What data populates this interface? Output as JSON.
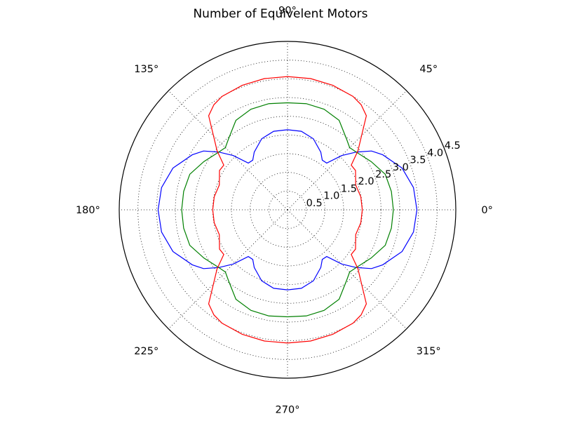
{
  "chart_data": {
    "type": "line",
    "projection": "polar",
    "title": "Number of Equivelent Motors",
    "rlim": [
      0,
      4.5
    ],
    "grid": true,
    "angle_ticks": [
      {
        "deg": 0,
        "label": "0°"
      },
      {
        "deg": 45,
        "label": "45°"
      },
      {
        "deg": 90,
        "label": "90°"
      },
      {
        "deg": 135,
        "label": "135°"
      },
      {
        "deg": 180,
        "label": "180°"
      },
      {
        "deg": 225,
        "label": "225°"
      },
      {
        "deg": 270,
        "label": "270°"
      },
      {
        "deg": 315,
        "label": "315°"
      }
    ],
    "radial_ticks": [
      {
        "r": 0.5,
        "label": "0.5"
      },
      {
        "r": 1.0,
        "label": "1.0"
      },
      {
        "r": 1.5,
        "label": "1.5"
      },
      {
        "r": 2.0,
        "label": "2.0"
      },
      {
        "r": 2.5,
        "label": "2.5"
      },
      {
        "r": 3.0,
        "label": "3.0"
      },
      {
        "r": 3.5,
        "label": "3.5"
      },
      {
        "r": 4.0,
        "label": "4.0"
      },
      {
        "r": 4.5,
        "label": "4.5"
      }
    ],
    "series": [
      {
        "color": "#0000ff",
        "theta_deg": [
          0,
          10,
          20,
          30,
          35,
          40,
          45,
          50,
          55,
          60,
          70,
          80,
          90
        ],
        "r": [
          3.46,
          3.42,
          3.26,
          2.94,
          2.74,
          2.4,
          2.05,
          1.63,
          1.62,
          1.78,
          2.02,
          2.13,
          2.14
        ]
      },
      {
        "color": "#008000",
        "theta_deg": [
          0,
          10,
          20,
          30,
          40,
          45,
          50,
          60,
          70,
          80,
          90
        ],
        "r": [
          2.83,
          2.82,
          2.78,
          2.58,
          2.4,
          2.35,
          2.46,
          2.76,
          2.86,
          2.88,
          2.86
        ]
      },
      {
        "color": "#ff0000",
        "theta_deg": [
          0,
          10,
          20,
          30,
          35,
          40,
          45,
          50,
          55,
          60,
          70,
          80,
          90
        ],
        "r": [
          2.0,
          1.99,
          1.94,
          2.1,
          2.08,
          2.46,
          2.8,
          3.28,
          3.43,
          3.5,
          3.54,
          3.56,
          3.56
        ]
      }
    ]
  }
}
